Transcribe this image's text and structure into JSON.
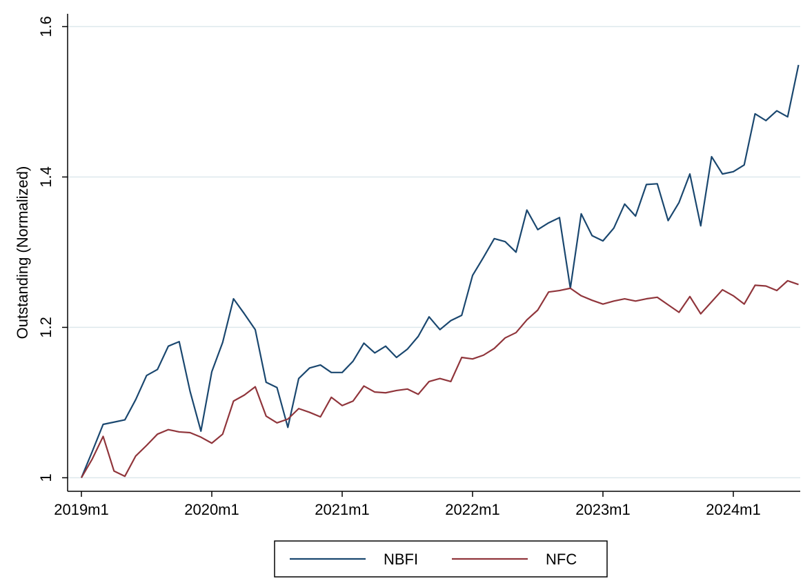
{
  "chart_data": {
    "type": "line",
    "y_label": "Outstanding (Normalized)",
    "categories": [
      "2019m1",
      null,
      null,
      null,
      null,
      null,
      null,
      null,
      null,
      null,
      null,
      null,
      "2020m1",
      null,
      null,
      null,
      null,
      null,
      null,
      null,
      null,
      null,
      null,
      null,
      "2021m1",
      null,
      null,
      null,
      null,
      null,
      null,
      null,
      null,
      null,
      null,
      null,
      "2022m1",
      null,
      null,
      null,
      null,
      null,
      null,
      null,
      null,
      null,
      null,
      null,
      "2023m1",
      null,
      null,
      null,
      null,
      null,
      null,
      null,
      null,
      null,
      null,
      null,
      "2024m1",
      null,
      null,
      null,
      null,
      null,
      null
    ],
    "series": [
      {
        "name": "NBFI",
        "color": "#1a476f",
        "values": [
          1.0,
          1.035,
          1.071,
          1.074,
          1.077,
          1.104,
          1.136,
          1.144,
          1.175,
          1.181,
          1.115,
          1.062,
          1.141,
          1.18,
          1.238,
          1.218,
          1.197,
          1.127,
          1.12,
          1.067,
          1.132,
          1.146,
          1.15,
          1.14,
          1.14,
          1.155,
          1.179,
          1.166,
          1.175,
          1.16,
          1.171,
          1.188,
          1.214,
          1.197,
          1.209,
          1.216,
          1.269,
          1.293,
          1.318,
          1.314,
          1.3,
          1.356,
          1.33,
          1.339,
          1.346,
          1.252,
          1.351,
          1.322,
          1.315,
          1.332,
          1.364,
          1.348,
          1.39,
          1.391,
          1.342,
          1.366,
          1.404,
          1.335,
          1.427,
          1.404,
          1.407,
          1.416,
          1.484,
          1.475,
          1.488,
          1.48,
          1.549
        ]
      },
      {
        "name": "NFC",
        "color": "#90353b",
        "values": [
          1.0,
          1.025,
          1.055,
          1.009,
          1.002,
          1.029,
          1.043,
          1.058,
          1.064,
          1.061,
          1.06,
          1.054,
          1.046,
          1.058,
          1.102,
          1.11,
          1.121,
          1.082,
          1.073,
          1.078,
          1.092,
          1.087,
          1.081,
          1.107,
          1.096,
          1.102,
          1.122,
          1.114,
          1.113,
          1.116,
          1.118,
          1.111,
          1.128,
          1.132,
          1.128,
          1.16,
          1.158,
          1.163,
          1.172,
          1.186,
          1.193,
          1.21,
          1.223,
          1.247,
          1.249,
          1.252,
          1.242,
          1.236,
          1.231,
          1.235,
          1.238,
          1.235,
          1.238,
          1.24,
          1.23,
          1.22,
          1.241,
          1.218,
          1.234,
          1.25,
          1.242,
          1.231,
          1.256,
          1.255,
          1.249,
          1.262,
          1.257
        ]
      }
    ],
    "ylim": [
      0.982,
      1.617
    ],
    "yticks": [
      1,
      1.2,
      1.4,
      1.6
    ],
    "grid": true,
    "legend": "bottom"
  }
}
